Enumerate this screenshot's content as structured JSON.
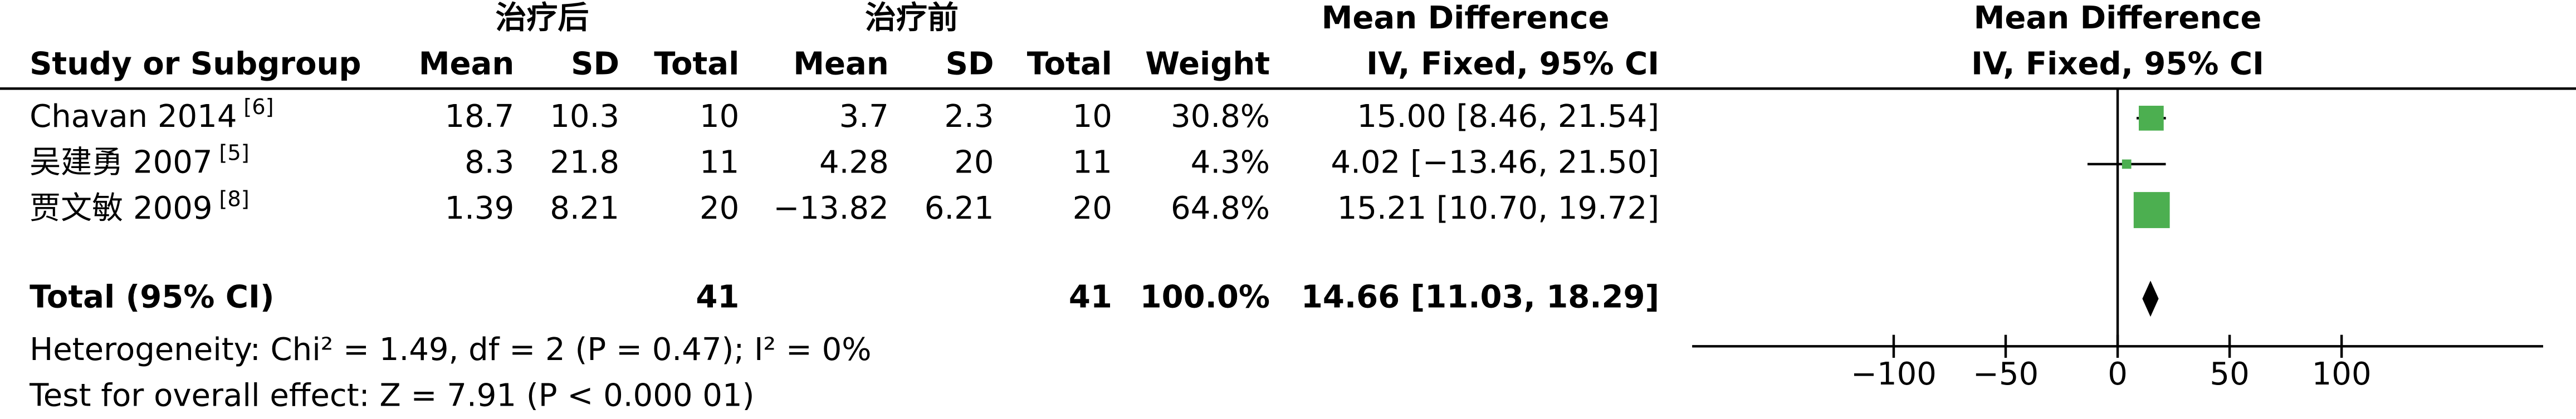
{
  "chart_data": {
    "type": "forest",
    "group1": "治疗后",
    "group2": "治疗前",
    "effect_title": "Mean Difference",
    "plot_title": "Mean Difference",
    "headers": [
      "Study or Subgroup",
      "Mean",
      "SD",
      "Total",
      "Mean",
      "SD",
      "Total",
      "Weight",
      "IV, Fixed, 95% CI"
    ],
    "plot_subtitle": "IV, Fixed, 95% CI",
    "rows": [
      [
        "Chavan 2014",
        "[6]",
        "18.7",
        "10.3",
        "10",
        "3.7",
        "2.3",
        "10",
        "30.8%",
        "15.00 [8.46, 21.54]"
      ],
      [
        "吴建勇 2007",
        "[5]",
        "8.3",
        "21.8",
        "11",
        "4.28",
        "20",
        "11",
        "4.3%",
        "4.02 [−13.46, 21.50]"
      ],
      [
        "贾文敏 2009",
        "[8]",
        "1.39",
        "8.21",
        "20",
        "−13.82",
        "6.21",
        "20",
        "64.8%",
        "15.21 [10.70, 19.72]"
      ]
    ],
    "effects": [
      {
        "md": 15.0,
        "lo": 8.46,
        "hi": 21.54,
        "weight": 30.8
      },
      {
        "md": 4.02,
        "lo": -13.46,
        "hi": 21.5,
        "weight": 4.3
      },
      {
        "md": 15.21,
        "lo": 10.7,
        "hi": 19.72,
        "weight": 64.8
      }
    ],
    "total": {
      "label": "Total (95% CI)",
      "n1": "41",
      "n2": "41",
      "weight": "100.0%",
      "ci": "14.66 [11.03, 18.29]",
      "md": 14.66,
      "lo": 11.03,
      "hi": 18.29
    },
    "heterogeneity": "Heterogeneity: Chi² = 1.49, df = 2 (P = 0.47); I² = 0%",
    "overall_test": "Test for overall effect: Z = 7.91 (P < 0.000 01)",
    "color": "#4caf50",
    "xlim": [
      -190,
      190
    ],
    "xticks": [
      {
        "value": -100,
        "label": "−100"
      },
      {
        "value": -50,
        "label": "−50"
      },
      0,
      50,
      100
    ]
  }
}
